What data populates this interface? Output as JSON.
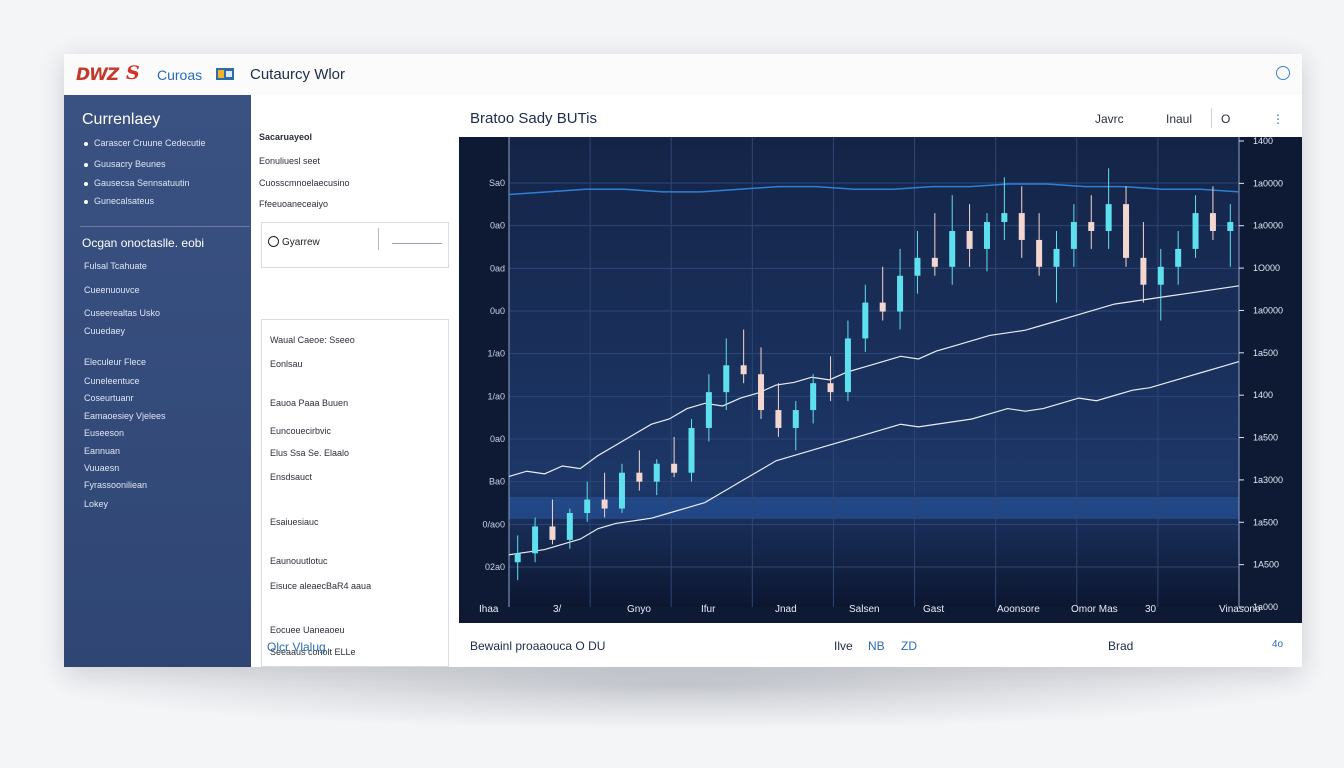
{
  "topbar": {
    "logo_text": "DWZ",
    "logo_mark": "S",
    "brand": "Curoas",
    "brand_icon": "flag-icon",
    "title": "Cutaurcy Wlor",
    "settings_icon": "user-circle-icon"
  },
  "sidebar": {
    "title": "Currenlaey",
    "items": [
      "Carascer Cruune Cedecutie",
      "Guusacry Beunes",
      "Gausecsa Sennsatuutin",
      "Gunecalsateus"
    ],
    "subtitle": "Ocgan onoctaslle. eobi",
    "sub_items": [
      "Fulsal Tcahuate",
      "Cueenuouvce",
      "Cuseerealtas Usko",
      "Cuuedaey",
      "Eleculeur Flece",
      "Cuneleentuce",
      "Coseurtuanr",
      "Eamaoesiey Vjelees",
      "Euseeson",
      "Eannuan",
      "Vuuaesn",
      "Fyrassooniliean",
      "Lokey"
    ]
  },
  "panel": {
    "heading": "Sacaruayeol",
    "items": [
      "Eonuliuesl seet",
      "Cuosscmnoelaecusino",
      "Ffeeuoaneceaiyo"
    ],
    "search_text": "Gyarrew",
    "list_items": [
      "Waual Caeoe: Sseeo",
      "Eonlsau",
      "Eauoa Paaa Buuen",
      "Euncouecirbvic",
      "Elus Ssa Se. Elaalo",
      "Ensdsauct",
      "Esaiuesiauc",
      "Eaunouutlotuc",
      "Eisuce aleaecBaR4 aaua",
      "Eocuee Uaneaoeu",
      "Seeaaus conolt ELLe"
    ],
    "bottom": "Olcr  Vlalug"
  },
  "main": {
    "chart_title": "Bratoo Sady BUTis",
    "ctl_1": "Javrc",
    "ctl_2": "Inaul",
    "ctl_3": "O",
    "footer_left": "Bewainl proaaouca O DU",
    "footer_m1": "Ilve",
    "footer_m2": "NB",
    "footer_m3": "ZD",
    "footer_right": "Brad",
    "footer_far": "4o"
  },
  "chart_data": {
    "type": "candlestick",
    "left_ticks": [
      "Sa0",
      "0a0",
      "0ad",
      "0u0",
      "1/a0",
      "1/a0",
      "0a0",
      "Ba0",
      "0/ao0",
      "02a0"
    ],
    "right_ticks": [
      "1400",
      "1a0000",
      "1a0000",
      "1O000",
      "1a0000",
      "1a500",
      "1400",
      "1a500",
      "1a3000",
      "1a500",
      "1A500",
      "1a000"
    ],
    "x_labels": [
      "Ihaa",
      "3/",
      "Gnyo",
      "Ifur",
      "Jnad",
      "Salsen",
      "Gast",
      "Aoonsore",
      "Omor Mas",
      "30",
      "Vinasono"
    ],
    "candles": [
      [
        30,
        36,
        26,
        32
      ],
      [
        32,
        40,
        30,
        38
      ],
      [
        38,
        44,
        34,
        35
      ],
      [
        35,
        42,
        33,
        41
      ],
      [
        41,
        48,
        39,
        44
      ],
      [
        44,
        50,
        40,
        42
      ],
      [
        42,
        52,
        41,
        50
      ],
      [
        50,
        55,
        46,
        48
      ],
      [
        48,
        53,
        45,
        52
      ],
      [
        52,
        58,
        49,
        50
      ],
      [
        50,
        62,
        48,
        60
      ],
      [
        60,
        72,
        57,
        68
      ],
      [
        68,
        80,
        64,
        74
      ],
      [
        74,
        82,
        70,
        72
      ],
      [
        72,
        78,
        62,
        64
      ],
      [
        64,
        70,
        58,
        60
      ],
      [
        60,
        66,
        55,
        64
      ],
      [
        64,
        72,
        61,
        70
      ],
      [
        70,
        76,
        66,
        68
      ],
      [
        68,
        84,
        66,
        80
      ],
      [
        80,
        92,
        77,
        88
      ],
      [
        88,
        96,
        84,
        86
      ],
      [
        86,
        100,
        82,
        94
      ],
      [
        94,
        104,
        90,
        98
      ],
      [
        98,
        108,
        94,
        96
      ],
      [
        96,
        112,
        92,
        104
      ],
      [
        104,
        110,
        96,
        100
      ],
      [
        100,
        108,
        95,
        106
      ],
      [
        106,
        116,
        102,
        108
      ],
      [
        108,
        114,
        98,
        102
      ],
      [
        102,
        108,
        94,
        96
      ],
      [
        96,
        104,
        88,
        100
      ],
      [
        100,
        110,
        96,
        106
      ],
      [
        106,
        112,
        100,
        104
      ],
      [
        104,
        118,
        100,
        110
      ],
      [
        110,
        114,
        96,
        98
      ],
      [
        98,
        106,
        88,
        92
      ],
      [
        92,
        100,
        84,
        96
      ],
      [
        96,
        104,
        92,
        100
      ],
      [
        100,
        112,
        98,
        108
      ],
      [
        108,
        114,
        102,
        104
      ],
      [
        104,
        110,
        96,
        106
      ]
    ],
    "price_ylim": [
      20,
      125
    ],
    "line_series": [
      {
        "values": [
          30,
          32,
          31,
          34,
          33,
          38,
          42,
          46,
          50,
          52,
          56,
          58,
          57,
          60,
          62,
          65,
          66,
          68,
          67,
          70,
          72,
          74,
          76,
          75,
          78,
          80,
          82,
          84,
          85,
          86,
          88,
          90,
          92,
          94,
          96,
          97,
          98,
          99,
          100,
          101,
          102,
          103
        ]
      },
      {
        "values": [
          20,
          21,
          22,
          24,
          26,
          30,
          32,
          33,
          34,
          36,
          38,
          40,
          44,
          48,
          52,
          56,
          58,
          60,
          62,
          64,
          66,
          68,
          70,
          69,
          70,
          71,
          72,
          74,
          76,
          75,
          76,
          78,
          80,
          79,
          81,
          83,
          84,
          86,
          88,
          90,
          92,
          94
        ]
      }
    ],
    "line_ylim": [
      0,
      180
    ],
    "hline_series": [
      {
        "values": [
          118,
          119,
          120,
          120,
          119,
          119,
          120,
          121,
          121,
          120,
          120,
          121,
          121,
          122,
          122,
          121,
          121,
          120,
          120,
          119
        ]
      }
    ]
  }
}
